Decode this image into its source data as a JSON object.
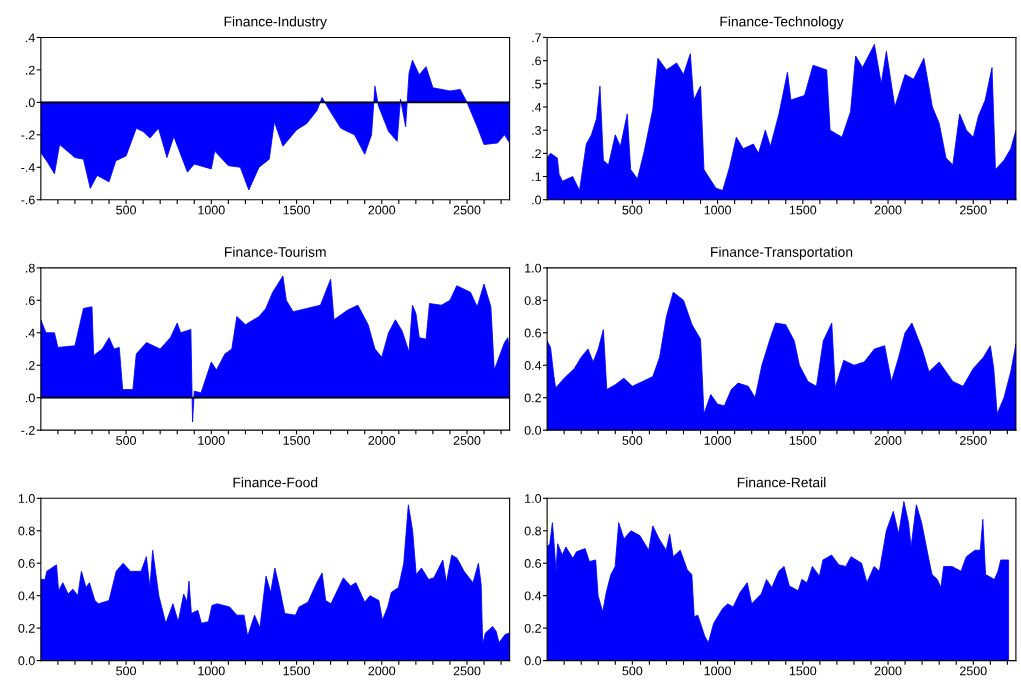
{
  "chart_data": [
    {
      "type": "area",
      "title": "Finance-Industry",
      "xlim": [
        0,
        2750
      ],
      "ylim": [
        -0.6,
        0.4
      ],
      "yticks": [
        {
          "value": -0.6,
          "label": "-.6"
        },
        {
          "value": -0.4,
          "label": "-.4"
        },
        {
          "value": -0.2,
          "label": "-.2"
        },
        {
          "value": 0.0,
          "label": ".0"
        },
        {
          "value": 0.2,
          "label": ".2"
        },
        {
          "value": 0.4,
          "label": ".4"
        }
      ],
      "xticks": [
        {
          "value": 100,
          "label": null
        },
        {
          "value": 200,
          "label": null
        },
        {
          "value": 300,
          "label": null
        },
        {
          "value": 400,
          "label": null
        },
        500,
        {
          "value": 600,
          "label": null
        },
        {
          "value": 700,
          "label": null
        },
        {
          "value": 800,
          "label": null
        },
        {
          "value": 900,
          "label": null
        },
        1000,
        {
          "value": 1100,
          "label": null
        },
        {
          "value": 1200,
          "label": null
        },
        {
          "value": 1300,
          "label": null
        },
        {
          "value": 1400,
          "label": null
        },
        1500,
        {
          "value": 1600,
          "label": null
        },
        {
          "value": 1700,
          "label": null
        },
        {
          "value": 1800,
          "label": null
        },
        {
          "value": 1900,
          "label": null
        },
        2000,
        {
          "value": 2100,
          "label": null
        },
        {
          "value": 2200,
          "label": null
        },
        {
          "value": 2300,
          "label": null
        },
        {
          "value": 2400,
          "label": null
        },
        2500,
        {
          "value": 2600,
          "label": null
        },
        {
          "value": 2700,
          "label": null
        }
      ],
      "ref_lines": [
        {
          "axis": "y",
          "value": 0,
          "color": "#000000"
        }
      ],
      "x": [
        0,
        40,
        80,
        110,
        200,
        250,
        290,
        330,
        400,
        440,
        500,
        560,
        600,
        640,
        690,
        740,
        780,
        860,
        900,
        1000,
        1020,
        1100,
        1170,
        1220,
        1280,
        1340,
        1370,
        1420,
        1500,
        1560,
        1620,
        1650,
        1700,
        1760,
        1840,
        1900,
        1940,
        1960,
        1980,
        2040,
        2090,
        2110,
        2140,
        2160,
        2180,
        2220,
        2260,
        2300,
        2400,
        2460,
        2500,
        2560,
        2600,
        2680,
        2720,
        2750
      ],
      "series": [
        {
          "color": "#0000ff",
          "values": [
            -0.31,
            -0.37,
            -0.44,
            -0.26,
            -0.34,
            -0.35,
            -0.53,
            -0.45,
            -0.49,
            -0.36,
            -0.33,
            -0.16,
            -0.18,
            -0.22,
            -0.16,
            -0.34,
            -0.21,
            -0.43,
            -0.38,
            -0.41,
            -0.3,
            -0.39,
            -0.4,
            -0.54,
            -0.4,
            -0.35,
            -0.12,
            -0.27,
            -0.17,
            -0.13,
            -0.05,
            0.03,
            -0.06,
            -0.16,
            -0.2,
            -0.32,
            -0.2,
            0.1,
            -0.02,
            -0.18,
            -0.24,
            0.02,
            -0.15,
            0.18,
            0.26,
            0.17,
            0.22,
            0.09,
            0.07,
            0.08,
            0.0,
            -0.15,
            -0.26,
            -0.25,
            -0.2,
            -0.25
          ]
        }
      ]
    },
    {
      "type": "area",
      "title": "Finance-Technology",
      "xlim": [
        0,
        2750
      ],
      "ylim": [
        0.0,
        0.7
      ],
      "yticks": [
        {
          "value": 0.0,
          "label": ".0"
        },
        {
          "value": 0.1,
          "label": ".1"
        },
        {
          "value": 0.2,
          "label": ".2"
        },
        {
          "value": 0.3,
          "label": ".3"
        },
        {
          "value": 0.4,
          "label": ".4"
        },
        {
          "value": 0.5,
          "label": ".5"
        },
        {
          "value": 0.6,
          "label": ".6"
        },
        {
          "value": 0.7,
          "label": ".7"
        }
      ],
      "xticks": [
        {
          "value": 100,
          "label": null
        },
        {
          "value": 200,
          "label": null
        },
        {
          "value": 300,
          "label": null
        },
        {
          "value": 400,
          "label": null
        },
        500,
        {
          "value": 600,
          "label": null
        },
        {
          "value": 700,
          "label": null
        },
        {
          "value": 800,
          "label": null
        },
        {
          "value": 900,
          "label": null
        },
        1000,
        {
          "value": 1100,
          "label": null
        },
        {
          "value": 1200,
          "label": null
        },
        {
          "value": 1300,
          "label": null
        },
        {
          "value": 1400,
          "label": null
        },
        1500,
        {
          "value": 1600,
          "label": null
        },
        {
          "value": 1700,
          "label": null
        },
        {
          "value": 1800,
          "label": null
        },
        {
          "value": 1900,
          "label": null
        },
        2000,
        {
          "value": 2100,
          "label": null
        },
        {
          "value": 2200,
          "label": null
        },
        {
          "value": 2300,
          "label": null
        },
        {
          "value": 2400,
          "label": null
        },
        2500,
        {
          "value": 2600,
          "label": null
        },
        {
          "value": 2700,
          "label": null
        }
      ],
      "x": [
        0,
        20,
        60,
        70,
        90,
        150,
        170,
        190,
        230,
        260,
        290,
        310,
        330,
        360,
        400,
        430,
        470,
        490,
        530,
        570,
        620,
        650,
        700,
        760,
        800,
        840,
        860,
        900,
        920,
        990,
        1030,
        1070,
        1110,
        1150,
        1210,
        1240,
        1280,
        1310,
        1360,
        1410,
        1430,
        1510,
        1560,
        1640,
        1660,
        1730,
        1780,
        1810,
        1850,
        1920,
        1960,
        1990,
        2040,
        2100,
        2150,
        2210,
        2260,
        2300,
        2340,
        2380,
        2420,
        2460,
        2500,
        2530,
        2570,
        2610,
        2630,
        2680,
        2720,
        2750
      ],
      "series": [
        {
          "color": "#0000ff",
          "values": [
            0.18,
            0.2,
            0.18,
            0.11,
            0.08,
            0.1,
            0.07,
            0.04,
            0.24,
            0.28,
            0.35,
            0.49,
            0.17,
            0.15,
            0.28,
            0.23,
            0.37,
            0.13,
            0.09,
            0.21,
            0.39,
            0.61,
            0.56,
            0.59,
            0.54,
            0.63,
            0.43,
            0.49,
            0.13,
            0.05,
            0.04,
            0.14,
            0.27,
            0.22,
            0.24,
            0.2,
            0.3,
            0.23,
            0.37,
            0.55,
            0.43,
            0.45,
            0.58,
            0.56,
            0.3,
            0.27,
            0.38,
            0.62,
            0.57,
            0.67,
            0.5,
            0.64,
            0.4,
            0.54,
            0.52,
            0.61,
            0.4,
            0.33,
            0.18,
            0.15,
            0.37,
            0.3,
            0.27,
            0.36,
            0.43,
            0.57,
            0.13,
            0.17,
            0.22,
            0.3
          ]
        }
      ]
    },
    {
      "type": "area",
      "title": "Finance-Tourism",
      "xlim": [
        0,
        2750
      ],
      "ylim": [
        -0.2,
        0.8
      ],
      "yticks": [
        {
          "value": -0.2,
          "label": "-.2"
        },
        {
          "value": 0.0,
          "label": ".0"
        },
        {
          "value": 0.2,
          "label": ".2"
        },
        {
          "value": 0.4,
          "label": ".4"
        },
        {
          "value": 0.6,
          "label": ".6"
        },
        {
          "value": 0.8,
          "label": ".8"
        }
      ],
      "xticks": [
        {
          "value": 100,
          "label": null
        },
        {
          "value": 200,
          "label": null
        },
        {
          "value": 300,
          "label": null
        },
        {
          "value": 400,
          "label": null
        },
        500,
        {
          "value": 600,
          "label": null
        },
        {
          "value": 700,
          "label": null
        },
        {
          "value": 800,
          "label": null
        },
        {
          "value": 900,
          "label": null
        },
        1000,
        {
          "value": 1100,
          "label": null
        },
        {
          "value": 1200,
          "label": null
        },
        {
          "value": 1300,
          "label": null
        },
        {
          "value": 1400,
          "label": null
        },
        1500,
        {
          "value": 1600,
          "label": null
        },
        {
          "value": 1700,
          "label": null
        },
        {
          "value": 1800,
          "label": null
        },
        {
          "value": 1900,
          "label": null
        },
        2000,
        {
          "value": 2100,
          "label": null
        },
        {
          "value": 2200,
          "label": null
        },
        {
          "value": 2300,
          "label": null
        },
        {
          "value": 2400,
          "label": null
        },
        2500,
        {
          "value": 2600,
          "label": null
        },
        {
          "value": 2700,
          "label": null
        }
      ],
      "ref_lines": [
        {
          "axis": "y",
          "value": 0,
          "color": "#000000"
        }
      ],
      "x": [
        0,
        30,
        80,
        100,
        200,
        250,
        300,
        310,
        360,
        400,
        430,
        460,
        480,
        540,
        560,
        620,
        700,
        760,
        800,
        820,
        880,
        890,
        900,
        940,
        1000,
        1030,
        1080,
        1120,
        1150,
        1200,
        1280,
        1320,
        1360,
        1420,
        1440,
        1480,
        1560,
        1640,
        1700,
        1720,
        1800,
        1860,
        1920,
        1960,
        2000,
        2040,
        2080,
        2120,
        2160,
        2180,
        2200,
        2220,
        2260,
        2280,
        2350,
        2400,
        2440,
        2520,
        2560,
        2600,
        2640,
        2660,
        2720,
        2740,
        2750
      ],
      "series": [
        {
          "color": "#0000ff",
          "values": [
            0.48,
            0.4,
            0.4,
            0.31,
            0.32,
            0.55,
            0.56,
            0.26,
            0.3,
            0.37,
            0.3,
            0.31,
            0.05,
            0.05,
            0.27,
            0.34,
            0.3,
            0.37,
            0.46,
            0.4,
            0.42,
            -0.15,
            0.04,
            0.03,
            0.22,
            0.17,
            0.27,
            0.3,
            0.5,
            0.45,
            0.5,
            0.55,
            0.65,
            0.75,
            0.6,
            0.53,
            0.55,
            0.57,
            0.73,
            0.48,
            0.54,
            0.57,
            0.45,
            0.3,
            0.25,
            0.4,
            0.48,
            0.41,
            0.28,
            0.57,
            0.52,
            0.37,
            0.36,
            0.58,
            0.57,
            0.6,
            0.69,
            0.65,
            0.56,
            0.7,
            0.56,
            0.17,
            0.34,
            0.37,
            0.26
          ]
        }
      ]
    },
    {
      "type": "area",
      "title": "Finance-Transportation",
      "xlim": [
        0,
        2750
      ],
      "ylim": [
        0.0,
        1.0
      ],
      "yticks": [
        {
          "value": 0.0,
          "label": "0.0"
        },
        {
          "value": 0.2,
          "label": "0.2"
        },
        {
          "value": 0.4,
          "label": "0.4"
        },
        {
          "value": 0.6,
          "label": "0.6"
        },
        {
          "value": 0.8,
          "label": "0.8"
        },
        {
          "value": 1.0,
          "label": "1.0"
        }
      ],
      "xticks": [
        {
          "value": 100,
          "label": null
        },
        {
          "value": 200,
          "label": null
        },
        {
          "value": 300,
          "label": null
        },
        {
          "value": 400,
          "label": null
        },
        500,
        {
          "value": 600,
          "label": null
        },
        {
          "value": 700,
          "label": null
        },
        {
          "value": 800,
          "label": null
        },
        {
          "value": 900,
          "label": null
        },
        1000,
        {
          "value": 1100,
          "label": null
        },
        {
          "value": 1200,
          "label": null
        },
        {
          "value": 1300,
          "label": null
        },
        {
          "value": 1400,
          "label": null
        },
        1500,
        {
          "value": 1600,
          "label": null
        },
        {
          "value": 1700,
          "label": null
        },
        {
          "value": 1800,
          "label": null
        },
        {
          "value": 1900,
          "label": null
        },
        2000,
        {
          "value": 2100,
          "label": null
        },
        {
          "value": 2200,
          "label": null
        },
        {
          "value": 2300,
          "label": null
        },
        {
          "value": 2400,
          "label": null
        },
        2500,
        {
          "value": 2600,
          "label": null
        },
        {
          "value": 2700,
          "label": null
        }
      ],
      "x": [
        0,
        20,
        40,
        50,
        100,
        160,
        200,
        240,
        270,
        300,
        330,
        350,
        400,
        450,
        500,
        560,
        620,
        660,
        700,
        740,
        800,
        850,
        900,
        920,
        960,
        1000,
        1040,
        1080,
        1120,
        1180,
        1220,
        1260,
        1310,
        1340,
        1400,
        1450,
        1480,
        1530,
        1580,
        1620,
        1670,
        1690,
        1740,
        1800,
        1860,
        1920,
        1980,
        2020,
        2060,
        2100,
        2140,
        2200,
        2240,
        2300,
        2380,
        2440,
        2500,
        2560,
        2600,
        2620,
        2640,
        2680,
        2720,
        2750
      ],
      "series": [
        {
          "color": "#0000ff",
          "values": [
            0.55,
            0.51,
            0.33,
            0.26,
            0.32,
            0.38,
            0.45,
            0.5,
            0.42,
            0.5,
            0.62,
            0.25,
            0.28,
            0.32,
            0.27,
            0.3,
            0.33,
            0.45,
            0.7,
            0.85,
            0.8,
            0.65,
            0.56,
            0.1,
            0.22,
            0.16,
            0.15,
            0.25,
            0.29,
            0.27,
            0.2,
            0.4,
            0.57,
            0.66,
            0.65,
            0.55,
            0.4,
            0.3,
            0.27,
            0.55,
            0.66,
            0.26,
            0.43,
            0.4,
            0.42,
            0.5,
            0.52,
            0.3,
            0.44,
            0.6,
            0.66,
            0.5,
            0.36,
            0.42,
            0.3,
            0.27,
            0.38,
            0.45,
            0.52,
            0.38,
            0.1,
            0.2,
            0.36,
            0.53
          ]
        }
      ]
    },
    {
      "type": "area",
      "title": "Finance-Food",
      "xlim": [
        0,
        2750
      ],
      "ylim": [
        0.0,
        1.0
      ],
      "yticks": [
        {
          "value": 0.0,
          "label": "0.0"
        },
        {
          "value": 0.2,
          "label": "0.2"
        },
        {
          "value": 0.4,
          "label": "0.4"
        },
        {
          "value": 0.6,
          "label": "0.6"
        },
        {
          "value": 0.8,
          "label": "0.8"
        },
        {
          "value": 1.0,
          "label": "1.0"
        }
      ],
      "xticks": [
        {
          "value": 100,
          "label": null
        },
        {
          "value": 200,
          "label": null
        },
        {
          "value": 300,
          "label": null
        },
        {
          "value": 400,
          "label": null
        },
        500,
        {
          "value": 600,
          "label": null
        },
        {
          "value": 700,
          "label": null
        },
        {
          "value": 800,
          "label": null
        },
        {
          "value": 900,
          "label": null
        },
        1000,
        {
          "value": 1100,
          "label": null
        },
        {
          "value": 1200,
          "label": null
        },
        {
          "value": 1300,
          "label": null
        },
        {
          "value": 1400,
          "label": null
        },
        1500,
        {
          "value": 1600,
          "label": null
        },
        {
          "value": 1700,
          "label": null
        },
        {
          "value": 1800,
          "label": null
        },
        {
          "value": 1900,
          "label": null
        },
        2000,
        {
          "value": 2100,
          "label": null
        },
        {
          "value": 2200,
          "label": null
        },
        {
          "value": 2300,
          "label": null
        },
        {
          "value": 2400,
          "label": null
        },
        2500,
        {
          "value": 2600,
          "label": null
        },
        {
          "value": 2700,
          "label": null
        }
      ],
      "x": [
        0,
        25,
        35,
        77,
        92,
        104,
        129,
        160,
        188,
        217,
        238,
        265,
        285,
        317,
        338,
        400,
        442,
        483,
        525,
        588,
        619,
        640,
        656,
        692,
        733,
        775,
        806,
        838,
        858,
        869,
        883,
        921,
        942,
        983,
        1004,
        1035,
        1108,
        1150,
        1192,
        1213,
        1254,
        1285,
        1321,
        1348,
        1373,
        1400,
        1431,
        1494,
        1515,
        1567,
        1619,
        1650,
        1671,
        1702,
        1775,
        1817,
        1848,
        1900,
        1931,
        1983,
        2004,
        2035,
        2056,
        2098,
        2129,
        2156,
        2181,
        2202,
        2233,
        2275,
        2306,
        2358,
        2379,
        2410,
        2442,
        2483,
        2535,
        2567,
        2583,
        2592,
        2608,
        2650,
        2671,
        2688,
        2723,
        2750
      ],
      "series": [
        {
          "color": "#0000ff",
          "values": [
            0.5,
            0.5,
            0.55,
            0.58,
            0.59,
            0.43,
            0.48,
            0.41,
            0.44,
            0.4,
            0.55,
            0.45,
            0.48,
            0.37,
            0.35,
            0.37,
            0.55,
            0.6,
            0.55,
            0.55,
            0.64,
            0.45,
            0.68,
            0.4,
            0.23,
            0.35,
            0.24,
            0.41,
            0.36,
            0.49,
            0.29,
            0.31,
            0.23,
            0.24,
            0.34,
            0.35,
            0.33,
            0.28,
            0.28,
            0.15,
            0.28,
            0.2,
            0.52,
            0.42,
            0.57,
            0.45,
            0.29,
            0.28,
            0.33,
            0.36,
            0.48,
            0.54,
            0.37,
            0.35,
            0.51,
            0.46,
            0.48,
            0.36,
            0.4,
            0.37,
            0.25,
            0.33,
            0.42,
            0.45,
            0.6,
            0.96,
            0.8,
            0.53,
            0.57,
            0.5,
            0.51,
            0.62,
            0.48,
            0.65,
            0.63,
            0.55,
            0.48,
            0.6,
            0.47,
            0.1,
            0.17,
            0.21,
            0.18,
            0.11,
            0.16,
            0.17
          ]
        }
      ]
    },
    {
      "type": "area",
      "title": "Finance-Retail",
      "xlim": [
        0,
        2750
      ],
      "ylim": [
        0.0,
        1.0
      ],
      "yticks": [
        {
          "value": 0.0,
          "label": "0.0"
        },
        {
          "value": 0.2,
          "label": "0.2"
        },
        {
          "value": 0.4,
          "label": "0.4"
        },
        {
          "value": 0.6,
          "label": "0.6"
        },
        {
          "value": 0.8,
          "label": "0.8"
        },
        {
          "value": 1.0,
          "label": "1.0"
        }
      ],
      "xticks": [
        {
          "value": 100,
          "label": null
        },
        {
          "value": 200,
          "label": null
        },
        {
          "value": 300,
          "label": null
        },
        {
          "value": 400,
          "label": null
        },
        500,
        {
          "value": 600,
          "label": null
        },
        {
          "value": 700,
          "label": null
        },
        {
          "value": 800,
          "label": null
        },
        {
          "value": 900,
          "label": null
        },
        1000,
        {
          "value": 1100,
          "label": null
        },
        {
          "value": 1200,
          "label": null
        },
        {
          "value": 1300,
          "label": null
        },
        {
          "value": 1400,
          "label": null
        },
        1500,
        {
          "value": 1600,
          "label": null
        },
        {
          "value": 1700,
          "label": null
        },
        {
          "value": 1800,
          "label": null
        },
        {
          "value": 1900,
          "label": null
        },
        2000,
        {
          "value": 2100,
          "label": null
        },
        {
          "value": 2200,
          "label": null
        },
        {
          "value": 2300,
          "label": null
        },
        {
          "value": 2400,
          "label": null
        },
        2500,
        {
          "value": 2600,
          "label": null
        },
        {
          "value": 2700,
          "label": null
        }
      ],
      "x": [
        0,
        16,
        31,
        41,
        52,
        62,
        89,
        110,
        151,
        172,
        223,
        248,
        285,
        299,
        326,
        347,
        374,
        399,
        420,
        451,
        492,
        544,
        596,
        620,
        657,
        698,
        719,
        740,
        781,
        822,
        849,
        863,
        884,
        925,
        946,
        977,
        1029,
        1060,
        1091,
        1132,
        1174,
        1200,
        1256,
        1287,
        1318,
        1359,
        1390,
        1421,
        1473,
        1494,
        1525,
        1556,
        1597,
        1618,
        1669,
        1711,
        1752,
        1783,
        1845,
        1876,
        1918,
        1949,
        1990,
        2031,
        2062,
        2093,
        2120,
        2135,
        2166,
        2197,
        2238,
        2258,
        2289,
        2310,
        2326,
        2376,
        2428,
        2459,
        2510,
        2541,
        2556,
        2572,
        2624,
        2645,
        2661,
        2707
      ],
      "series": [
        {
          "color": "#0000ff",
          "values": [
            0.7,
            0.72,
            0.85,
            0.72,
            0.55,
            0.72,
            0.65,
            0.7,
            0.63,
            0.67,
            0.69,
            0.61,
            0.62,
            0.4,
            0.3,
            0.42,
            0.53,
            0.58,
            0.85,
            0.75,
            0.8,
            0.77,
            0.68,
            0.83,
            0.75,
            0.68,
            0.78,
            0.64,
            0.68,
            0.56,
            0.53,
            0.27,
            0.28,
            0.15,
            0.11,
            0.23,
            0.32,
            0.35,
            0.33,
            0.42,
            0.48,
            0.35,
            0.41,
            0.5,
            0.45,
            0.55,
            0.58,
            0.46,
            0.43,
            0.5,
            0.48,
            0.58,
            0.52,
            0.62,
            0.65,
            0.59,
            0.58,
            0.64,
            0.6,
            0.48,
            0.58,
            0.55,
            0.8,
            0.92,
            0.78,
            0.98,
            0.85,
            0.7,
            0.96,
            0.85,
            0.63,
            0.53,
            0.5,
            0.45,
            0.58,
            0.58,
            0.55,
            0.64,
            0.68,
            0.68,
            0.87,
            0.53,
            0.5,
            0.55,
            0.62,
            0.62
          ]
        }
      ]
    }
  ]
}
